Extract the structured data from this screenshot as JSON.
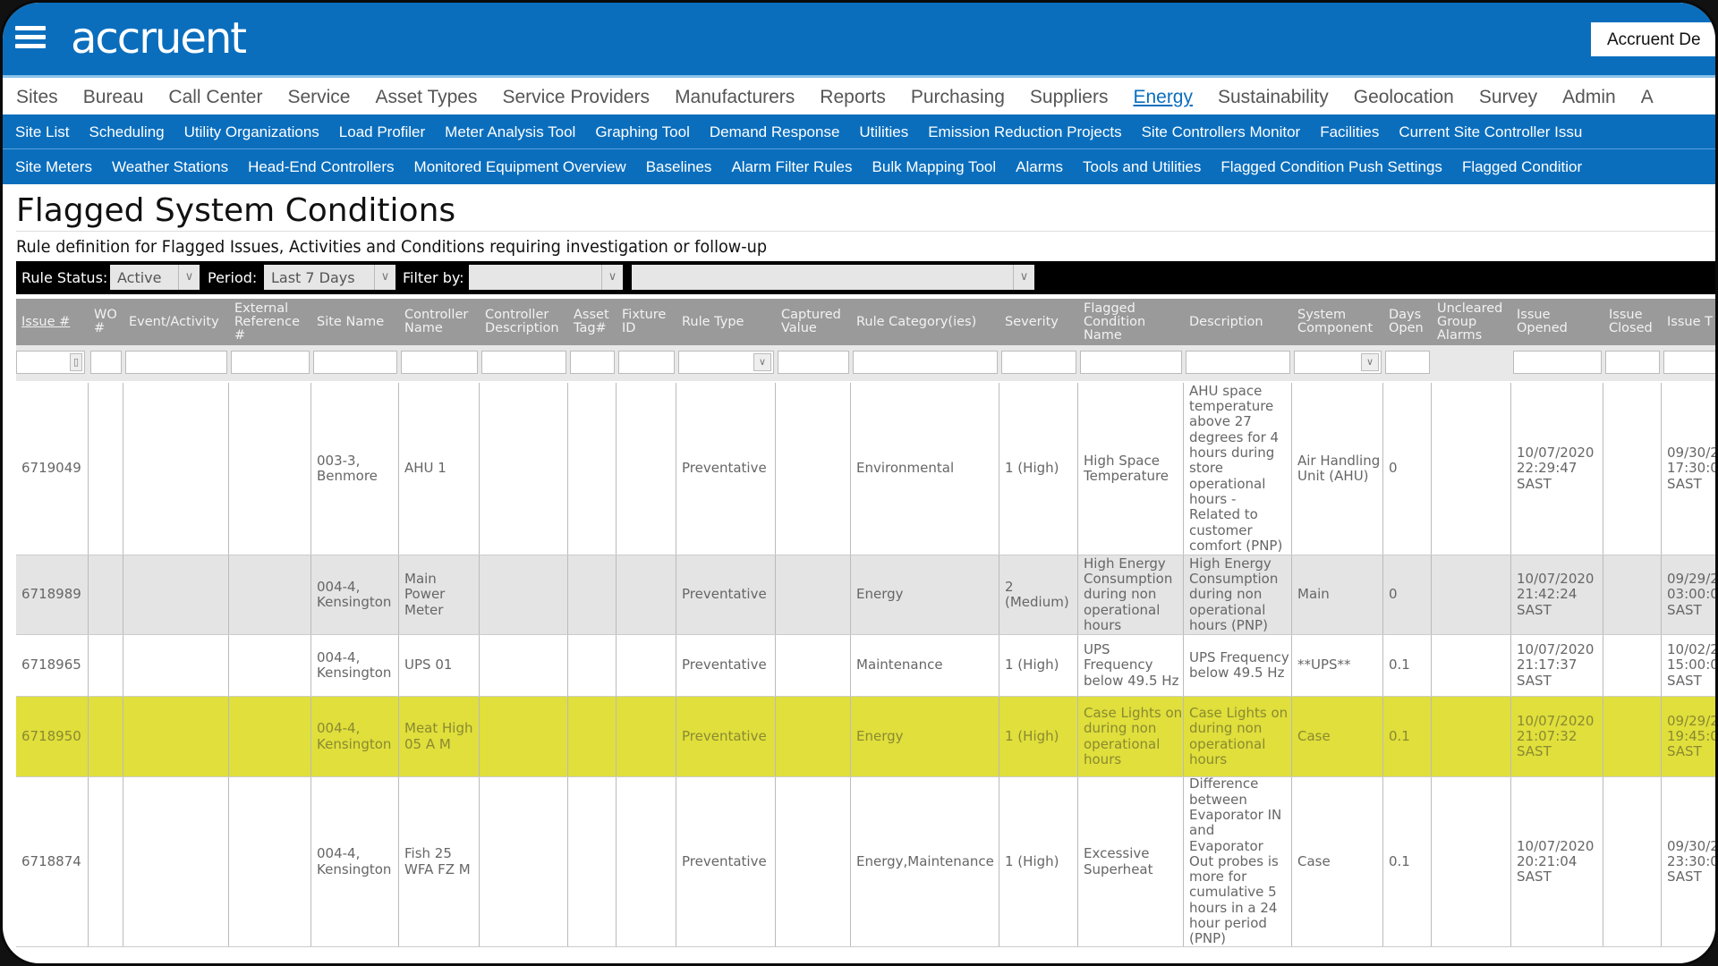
{
  "header": {
    "logo": "accruent",
    "account": "Accruent De"
  },
  "main_nav": [
    "Sites",
    "Bureau",
    "Call Center",
    "Service",
    "Asset Types",
    "Service Providers",
    "Manufacturers",
    "Reports",
    "Purchasing",
    "Suppliers",
    "Energy",
    "Sustainability",
    "Geolocation",
    "Survey",
    "Admin",
    "A"
  ],
  "main_nav_active": "Energy",
  "sub_nav_1": [
    "Site List",
    "Scheduling",
    "Utility Organizations",
    "Load Profiler",
    "Meter Analysis Tool",
    "Graphing Tool",
    "Demand Response",
    "Utilities",
    "Emission Reduction Projects",
    "Site Controllers Monitor",
    "Facilities",
    "Current Site Controller Issu"
  ],
  "sub_nav_2": [
    "Site Meters",
    "Weather Stations",
    "Head-End Controllers",
    "Monitored Equipment Overview",
    "Baselines",
    "Alarm Filter Rules",
    "Bulk Mapping Tool",
    "Alarms",
    "Tools and Utilities",
    "Flagged Condition Push Settings",
    "Flagged Conditior"
  ],
  "page": {
    "title": "Flagged System Conditions",
    "subtitle": "Rule definition for Flagged Issues, Activities and Conditions requiring investigation or follow-up"
  },
  "filters": {
    "rule_status_label": "Rule Status:",
    "rule_status": "Active",
    "period_label": "Period:",
    "period": "Last 7 Days",
    "filter_by_label": "Filter by:",
    "filter_by": "",
    "filter_value": ""
  },
  "colors": {
    "brand": "#0a6ebd",
    "highlight_row": "#e0df3c",
    "alt_row": "#e4e4e4",
    "header": "#9a9a9a"
  },
  "table": {
    "columns": [
      "Issue #",
      "WO #",
      "Event/Activity",
      "External Reference #",
      "Site Name",
      "Controller Name",
      "Controller Description",
      "Asset Tag#",
      "Fixture ID",
      "Rule Type",
      "Captured Value",
      "Rule Category(ies)",
      "Severity",
      "Flagged Condition Name",
      "Description",
      "System Component",
      "Days Open",
      "Uncleared Group Alarms",
      "Issue Opened",
      "Issue Closed",
      "Issue T"
    ],
    "rows": [
      {
        "highlight": false,
        "alt": false,
        "cells": [
          "6719049",
          "",
          "",
          "",
          "003-3, Benmore",
          "AHU 1",
          "",
          "",
          "",
          "Preventative",
          "",
          "Environmental",
          "1 (High)",
          "High Space Temperature",
          "AHU space temperature above 27 degrees for 4 hours during store operational hours - Related to customer comfort (PNP)",
          "Air Handling Unit (AHU)",
          "0",
          "",
          "10/07/2020 22:29:47 SAST",
          "",
          "09/30/2\n17:30:0\nSAST"
        ]
      },
      {
        "highlight": false,
        "alt": true,
        "cells": [
          "6718989",
          "",
          "",
          "",
          "004-4, Kensington",
          "Main Power Meter",
          "",
          "",
          "",
          "Preventative",
          "",
          "Energy",
          "2 (Medium)",
          "High Energy Consumption during non operational hours",
          "High Energy Consumption during non operational hours (PNP)",
          "Main",
          "0",
          "",
          "10/07/2020 21:42:24 SAST",
          "",
          "09/29/2\n03:00:0\nSAST"
        ]
      },
      {
        "highlight": false,
        "alt": false,
        "cells": [
          "6718965",
          "",
          "",
          "",
          "004-4, Kensington",
          "UPS 01",
          "",
          "",
          "",
          "Preventative",
          "",
          "Maintenance",
          "1 (High)",
          "UPS Frequency below 49.5 Hz",
          "UPS Frequency below 49.5 Hz",
          "**UPS**",
          "0.1",
          "",
          "10/07/2020 21:17:37 SAST",
          "",
          "10/02/2\n15:00:0\nSAST"
        ]
      },
      {
        "highlight": true,
        "alt": false,
        "cells": [
          "6718950",
          "",
          "",
          "",
          "004-4, Kensington",
          "Meat High 05 A M",
          "",
          "",
          "",
          "Preventative",
          "",
          "Energy",
          "1 (High)",
          "Case Lights on during non operational hours",
          "Case Lights on during non operational hours",
          "Case",
          "0.1",
          "",
          "10/07/2020 21:07:32 SAST",
          "",
          "09/29/2\n19:45:0\nSAST"
        ]
      },
      {
        "highlight": false,
        "alt": false,
        "cells": [
          "6718874",
          "",
          "",
          "",
          "004-4, Kensington",
          "Fish 25 WFA FZ M",
          "",
          "",
          "",
          "Preventative",
          "",
          "Energy,Maintenance",
          "1 (High)",
          "Excessive Superheat",
          "Difference between Evaporator IN and Evaporator Out probes is more for cumulative 5 hours in a 24 hour period (PNP)",
          "Case",
          "0.1",
          "",
          "10/07/2020 20:21:04 SAST",
          "",
          "09/30/2\n23:30:0\nSAST"
        ]
      }
    ]
  }
}
